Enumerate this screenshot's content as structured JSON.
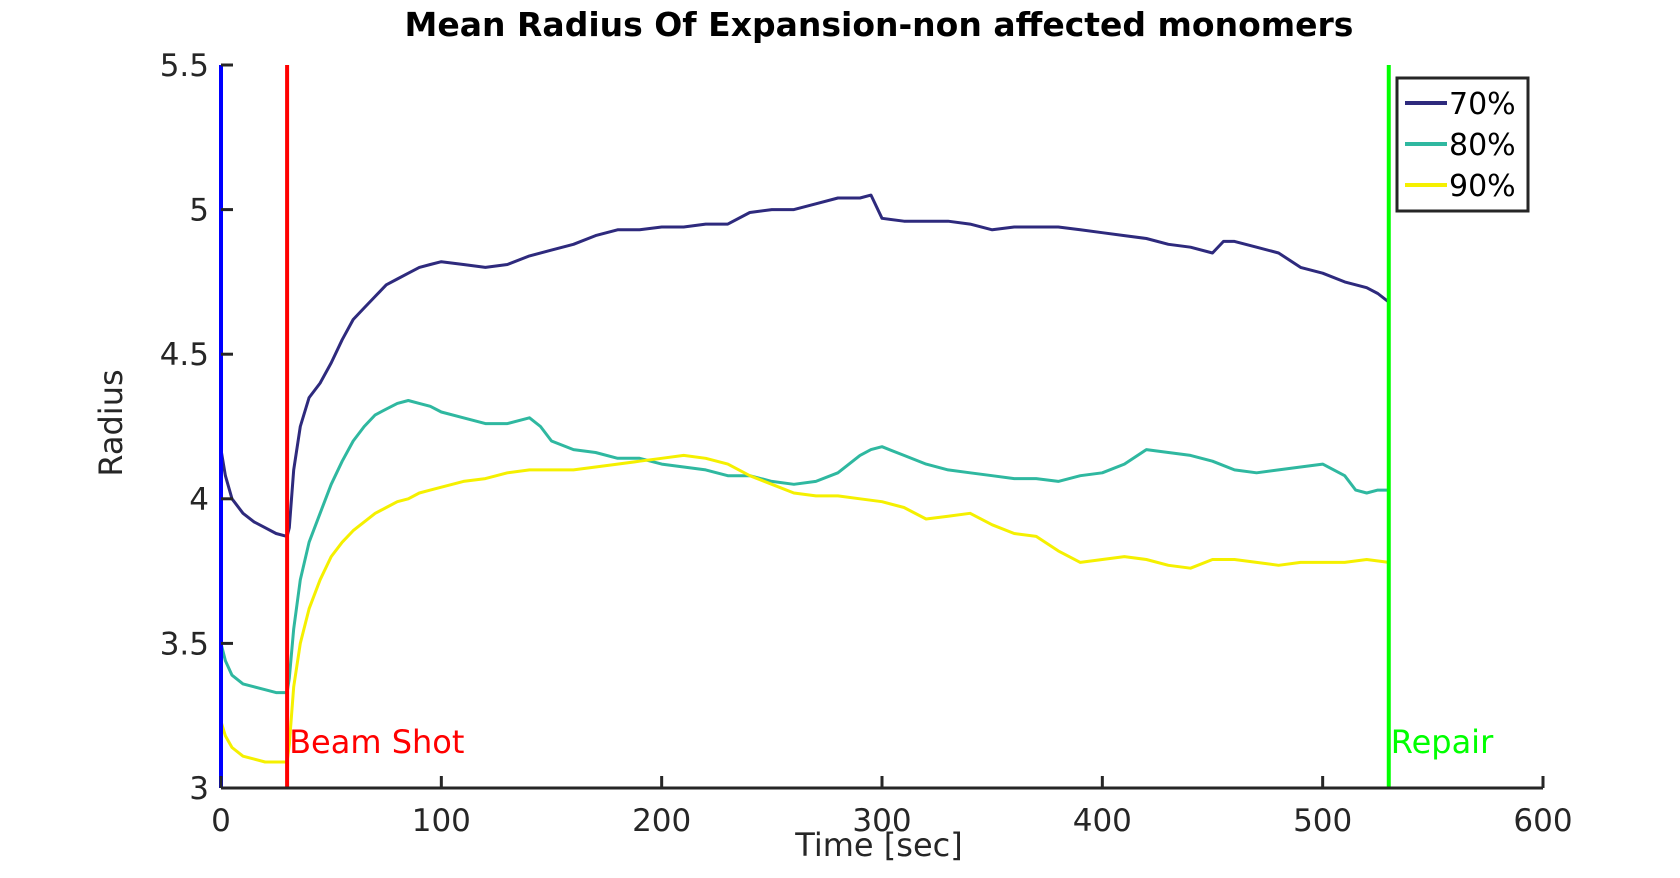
{
  "chart_data": {
    "type": "line",
    "title": "Mean Radius Of Expansion-non affected monomers",
    "xlabel": "Time [sec]",
    "ylabel": "Radius",
    "xlim": [
      0,
      600
    ],
    "ylim": [
      3,
      5.5
    ],
    "xticks": [
      0,
      100,
      200,
      300,
      400,
      500,
      600
    ],
    "xtick_labels": [
      "0",
      "100",
      "200",
      "300",
      "400",
      "500",
      "600"
    ],
    "yticks": [
      3,
      3.5,
      4,
      4.5,
      5,
      5.5
    ],
    "ytick_labels": [
      "3",
      "3.5",
      "4",
      "4.5",
      "5",
      "5.5"
    ],
    "grid": false,
    "legend_position": "top-right",
    "vertical_lines": [
      {
        "x": 0,
        "color": "#0000ff",
        "label": ""
      },
      {
        "x": 30,
        "color": "#ff0000",
        "label": "Beam Shot"
      },
      {
        "x": 530,
        "color": "#00ff00",
        "label": "Repair"
      }
    ],
    "series": [
      {
        "name": "70%",
        "color": "#2e2a7d",
        "x": [
          0,
          2,
          5,
          10,
          15,
          20,
          25,
          30,
          31,
          33,
          36,
          40,
          45,
          50,
          55,
          60,
          65,
          70,
          75,
          80,
          85,
          90,
          95,
          100,
          110,
          120,
          130,
          140,
          150,
          160,
          170,
          180,
          190,
          200,
          210,
          220,
          230,
          240,
          250,
          260,
          270,
          280,
          290,
          295,
          300,
          310,
          320,
          330,
          340,
          350,
          360,
          370,
          380,
          390,
          400,
          410,
          420,
          430,
          440,
          450,
          455,
          460,
          470,
          480,
          490,
          500,
          510,
          520,
          525,
          530
        ],
        "y": [
          4.17,
          4.08,
          4.0,
          3.95,
          3.92,
          3.9,
          3.88,
          3.87,
          3.9,
          4.1,
          4.25,
          4.35,
          4.4,
          4.47,
          4.55,
          4.62,
          4.66,
          4.7,
          4.74,
          4.76,
          4.78,
          4.8,
          4.81,
          4.82,
          4.81,
          4.8,
          4.81,
          4.84,
          4.86,
          4.88,
          4.91,
          4.93,
          4.93,
          4.94,
          4.94,
          4.95,
          4.95,
          4.99,
          5.0,
          5.0,
          5.02,
          5.04,
          5.04,
          5.05,
          4.97,
          4.96,
          4.96,
          4.96,
          4.95,
          4.93,
          4.94,
          4.94,
          4.94,
          4.93,
          4.92,
          4.91,
          4.9,
          4.88,
          4.87,
          4.85,
          4.89,
          4.89,
          4.87,
          4.85,
          4.8,
          4.78,
          4.75,
          4.73,
          4.71,
          4.68
        ]
      },
      {
        "name": "80%",
        "color": "#2fb8a0",
        "x": [
          0,
          2,
          5,
          10,
          15,
          20,
          25,
          30,
          31,
          33,
          36,
          40,
          45,
          50,
          55,
          60,
          65,
          70,
          75,
          80,
          85,
          90,
          95,
          100,
          110,
          120,
          130,
          140,
          145,
          150,
          160,
          170,
          180,
          190,
          200,
          210,
          220,
          230,
          240,
          250,
          260,
          270,
          280,
          290,
          295,
          300,
          310,
          320,
          330,
          340,
          350,
          360,
          370,
          380,
          390,
          400,
          410,
          420,
          430,
          440,
          450,
          460,
          470,
          480,
          490,
          500,
          510,
          515,
          520,
          525,
          530
        ],
        "y": [
          3.5,
          3.44,
          3.39,
          3.36,
          3.35,
          3.34,
          3.33,
          3.33,
          3.38,
          3.55,
          3.72,
          3.85,
          3.95,
          4.05,
          4.13,
          4.2,
          4.25,
          4.29,
          4.31,
          4.33,
          4.34,
          4.33,
          4.32,
          4.3,
          4.28,
          4.26,
          4.26,
          4.28,
          4.25,
          4.2,
          4.17,
          4.16,
          4.14,
          4.14,
          4.12,
          4.11,
          4.1,
          4.08,
          4.08,
          4.06,
          4.05,
          4.06,
          4.09,
          4.15,
          4.17,
          4.18,
          4.15,
          4.12,
          4.1,
          4.09,
          4.08,
          4.07,
          4.07,
          4.06,
          4.08,
          4.09,
          4.12,
          4.17,
          4.16,
          4.15,
          4.13,
          4.1,
          4.09,
          4.1,
          4.11,
          4.12,
          4.08,
          4.03,
          4.02,
          4.03,
          4.03
        ]
      },
      {
        "name": "90%",
        "color": "#f5f000",
        "x": [
          0,
          2,
          5,
          10,
          15,
          20,
          25,
          30,
          31,
          33,
          36,
          40,
          45,
          50,
          55,
          60,
          65,
          70,
          75,
          80,
          85,
          90,
          95,
          100,
          110,
          120,
          130,
          140,
          150,
          160,
          170,
          180,
          190,
          200,
          210,
          220,
          230,
          240,
          250,
          260,
          270,
          280,
          290,
          300,
          310,
          320,
          330,
          340,
          350,
          360,
          370,
          380,
          390,
          400,
          410,
          420,
          430,
          440,
          450,
          460,
          470,
          480,
          490,
          500,
          510,
          520,
          530
        ],
        "y": [
          3.23,
          3.18,
          3.14,
          3.11,
          3.1,
          3.09,
          3.09,
          3.09,
          3.15,
          3.35,
          3.5,
          3.62,
          3.72,
          3.8,
          3.85,
          3.89,
          3.92,
          3.95,
          3.97,
          3.99,
          4.0,
          4.02,
          4.03,
          4.04,
          4.06,
          4.07,
          4.09,
          4.1,
          4.1,
          4.1,
          4.11,
          4.12,
          4.13,
          4.14,
          4.15,
          4.14,
          4.12,
          4.08,
          4.05,
          4.02,
          4.01,
          4.01,
          4.0,
          3.99,
          3.97,
          3.93,
          3.94,
          3.95,
          3.91,
          3.88,
          3.87,
          3.82,
          3.78,
          3.79,
          3.8,
          3.79,
          3.77,
          3.76,
          3.79,
          3.79,
          3.78,
          3.77,
          3.78,
          3.78,
          3.78,
          3.79,
          3.78
        ]
      }
    ]
  }
}
